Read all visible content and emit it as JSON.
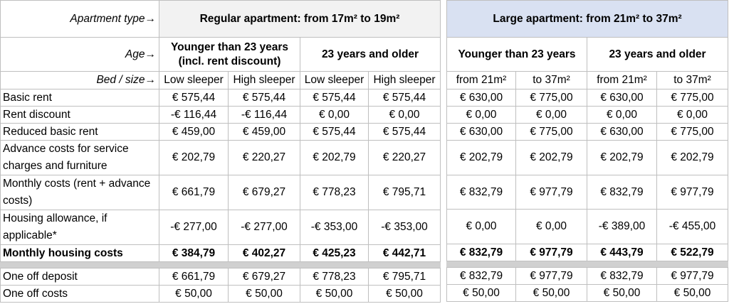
{
  "header": {
    "apartment_type_label": "Apartment type→",
    "age_label": "Age→",
    "bed_label": "Bed / size→",
    "regular": "Regular apartment: from 17m² to 19m²",
    "large": "Large apartment: from 21m² to 37m²",
    "younger_discount_1": "Younger than 23 years",
    "younger_discount_2": "(incl. rent discount)",
    "older": "23 years and older",
    "younger": "Younger than 23 years",
    "older2": "23 years and older",
    "low": "Low sleeper",
    "high": "High sleeper",
    "low2": "Low sleeper",
    "high2": "High sleeper",
    "from21a": "from 21m²",
    "to37a": "to 37m²",
    "from21b": "from 21m²",
    "to37b": "to 37m²"
  },
  "rows": [
    {
      "label": "Basic rent",
      "r": [
        "€ 575,44",
        "€ 575,44",
        "€ 575,44",
        "€ 575,44"
      ],
      "l": [
        "€ 630,00",
        "€ 775,00",
        "€ 630,00",
        "€ 775,00"
      ]
    },
    {
      "label": "Rent discount",
      "r": [
        "-€ 116,44",
        "-€ 116,44",
        "€ 0,00",
        "€ 0,00"
      ],
      "l": [
        "€ 0,00",
        "€ 0,00",
        "€ 0,00",
        "€ 0,00"
      ]
    },
    {
      "label": "Reduced basic rent",
      "r": [
        "€ 459,00",
        "€ 459,00",
        "€ 575,44",
        "€ 575,44"
      ],
      "l": [
        "€ 630,00",
        "€ 775,00",
        "€ 630,00",
        "€ 775,00"
      ]
    },
    {
      "label": "Advance costs for service charges and furniture",
      "r": [
        "€ 202,79",
        "€ 220,27",
        "€ 202,79",
        "€ 220,27"
      ],
      "l": [
        "€ 202,79",
        "€ 202,79",
        "€ 202,79",
        "€ 202,79"
      ]
    },
    {
      "label": "Monthly costs (rent + advance costs)",
      "r": [
        "€ 661,79",
        "€ 679,27",
        "€ 778,23",
        "€ 795,71"
      ],
      "l": [
        "€ 832,79",
        "€ 977,79",
        "€ 832,79",
        "€ 977,79"
      ]
    },
    {
      "label": "Housing allowance, if applicable*",
      "r": [
        "-€ 277,00",
        "-€ 277,00",
        "-€ 353,00",
        "-€ 353,00"
      ],
      "l": [
        "€ 0,00",
        "€ 0,00",
        "-€ 389,00",
        "-€ 455,00"
      ]
    },
    {
      "label": "Monthly housing costs",
      "r": [
        "€ 384,79",
        "€ 402,27",
        "€ 425,23",
        "€ 442,71"
      ],
      "l": [
        "€ 832,79",
        "€ 977,79",
        "€ 443,79",
        "€ 522,79"
      ]
    },
    {
      "label": "One off deposit",
      "r": [
        "€ 661,79",
        "€ 679,27",
        "€ 778,23",
        "€ 795,71"
      ],
      "l": [
        "€ 832,79",
        "€ 977,79",
        "€ 832,79",
        "€ 977,79"
      ]
    },
    {
      "label": "One off costs",
      "r": [
        "€ 50,00",
        "€ 50,00",
        "€ 50,00",
        "€ 50,00"
      ],
      "l": [
        "€ 50,00",
        "€ 50,00",
        "€ 50,00",
        "€ 50,00"
      ]
    }
  ],
  "colors": {
    "regular_header_bg": "#f2f2f2",
    "large_header_bg": "#d9e1f2",
    "separator": "#d0d0d0"
  }
}
